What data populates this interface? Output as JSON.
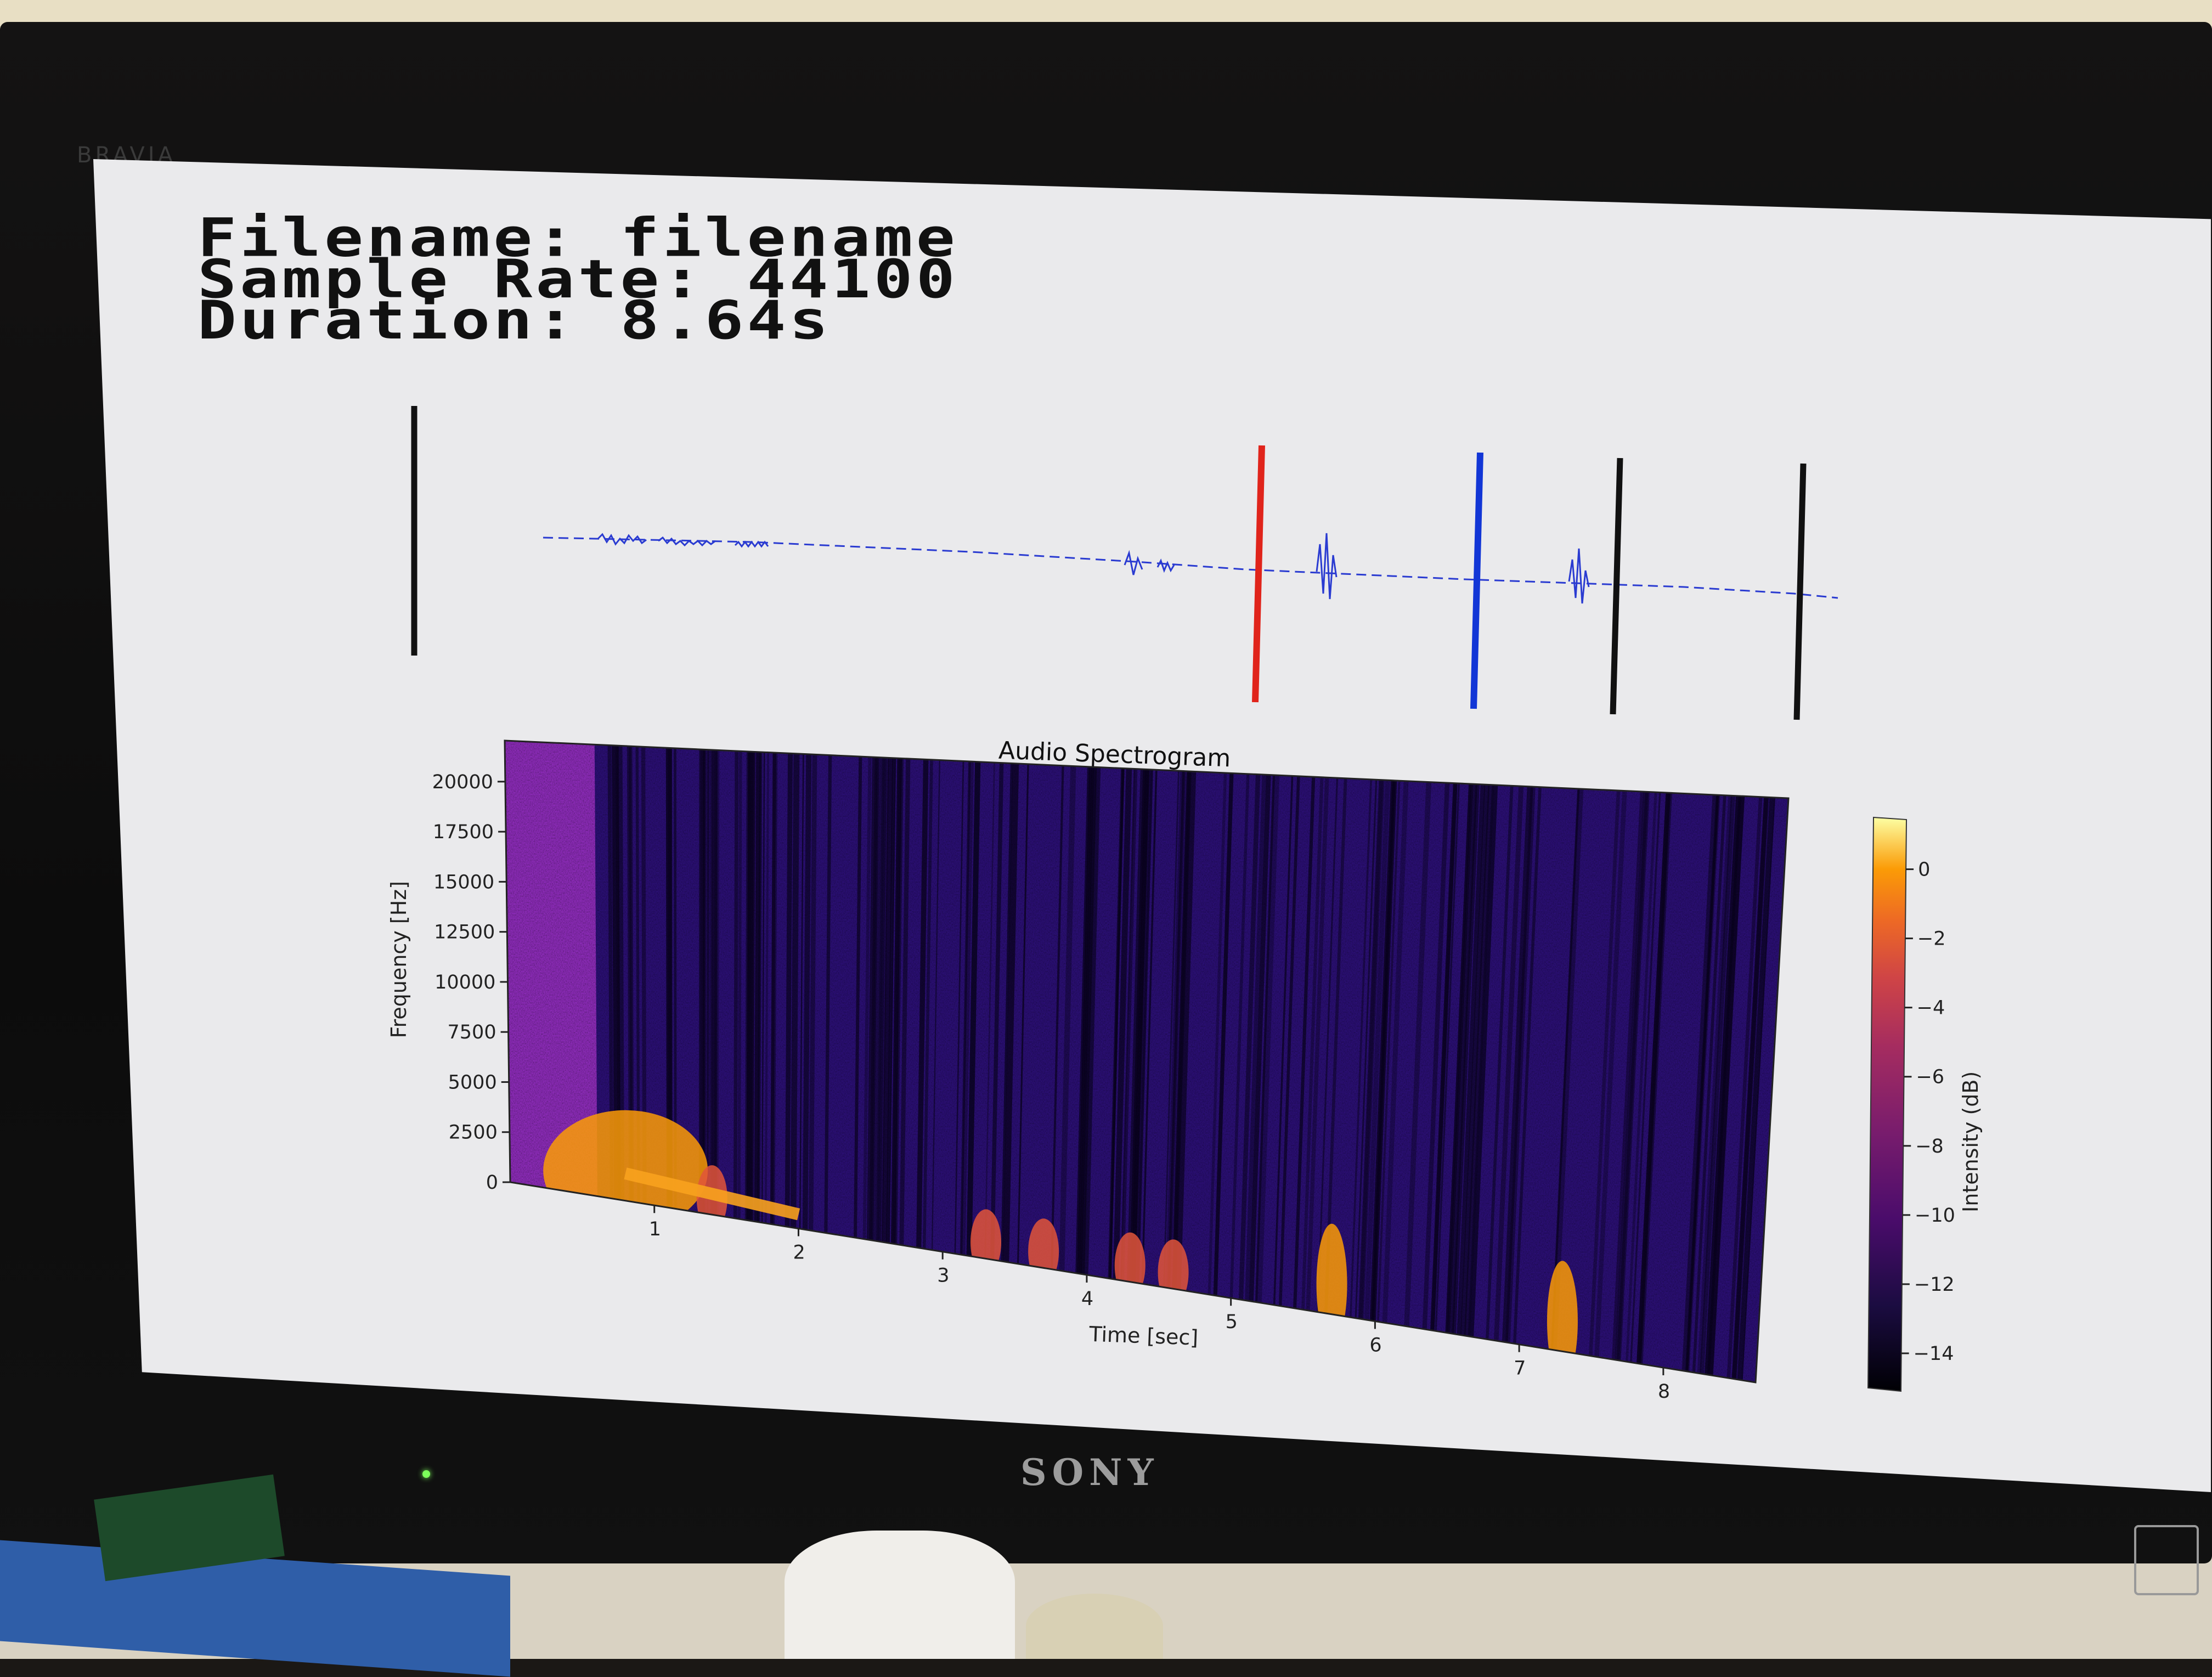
{
  "device": {
    "brand_top": "BRAVIA",
    "brand": "SONY"
  },
  "info": {
    "filename_line": "Filename: filename",
    "samplerate_line": "Sample Rate: 44100",
    "duration_line": "Duration: 8.64s"
  },
  "waveform": {
    "marker_colors": [
      "#111111",
      "#e0241b",
      "#1236d6",
      "#111111",
      "#111111"
    ],
    "trace_color": "#2a3bd1"
  },
  "chart_data": {
    "type": "heatmap",
    "title": "Audio Spectrogram",
    "xlabel": "Time [sec]",
    "ylabel": "Frequency [Hz]",
    "x_ticks": [
      1,
      2,
      3,
      4,
      5,
      6,
      7,
      8
    ],
    "y_ticks": [
      0,
      2500,
      5000,
      7500,
      10000,
      12500,
      15000,
      17500,
      20000
    ],
    "xlim": [
      0,
      8.64
    ],
    "ylim": [
      0,
      22050
    ],
    "colorbar": {
      "label": "Intensity (dB)",
      "ticks": [
        0,
        -2,
        -4,
        -6,
        -8,
        -10,
        -12,
        -14
      ],
      "range": [
        -15,
        1.5
      ],
      "colormap": "inferno"
    },
    "events_sec": [
      0.8,
      1.4,
      3.3,
      3.7,
      4.3,
      4.6,
      5.7,
      7.3
    ]
  }
}
